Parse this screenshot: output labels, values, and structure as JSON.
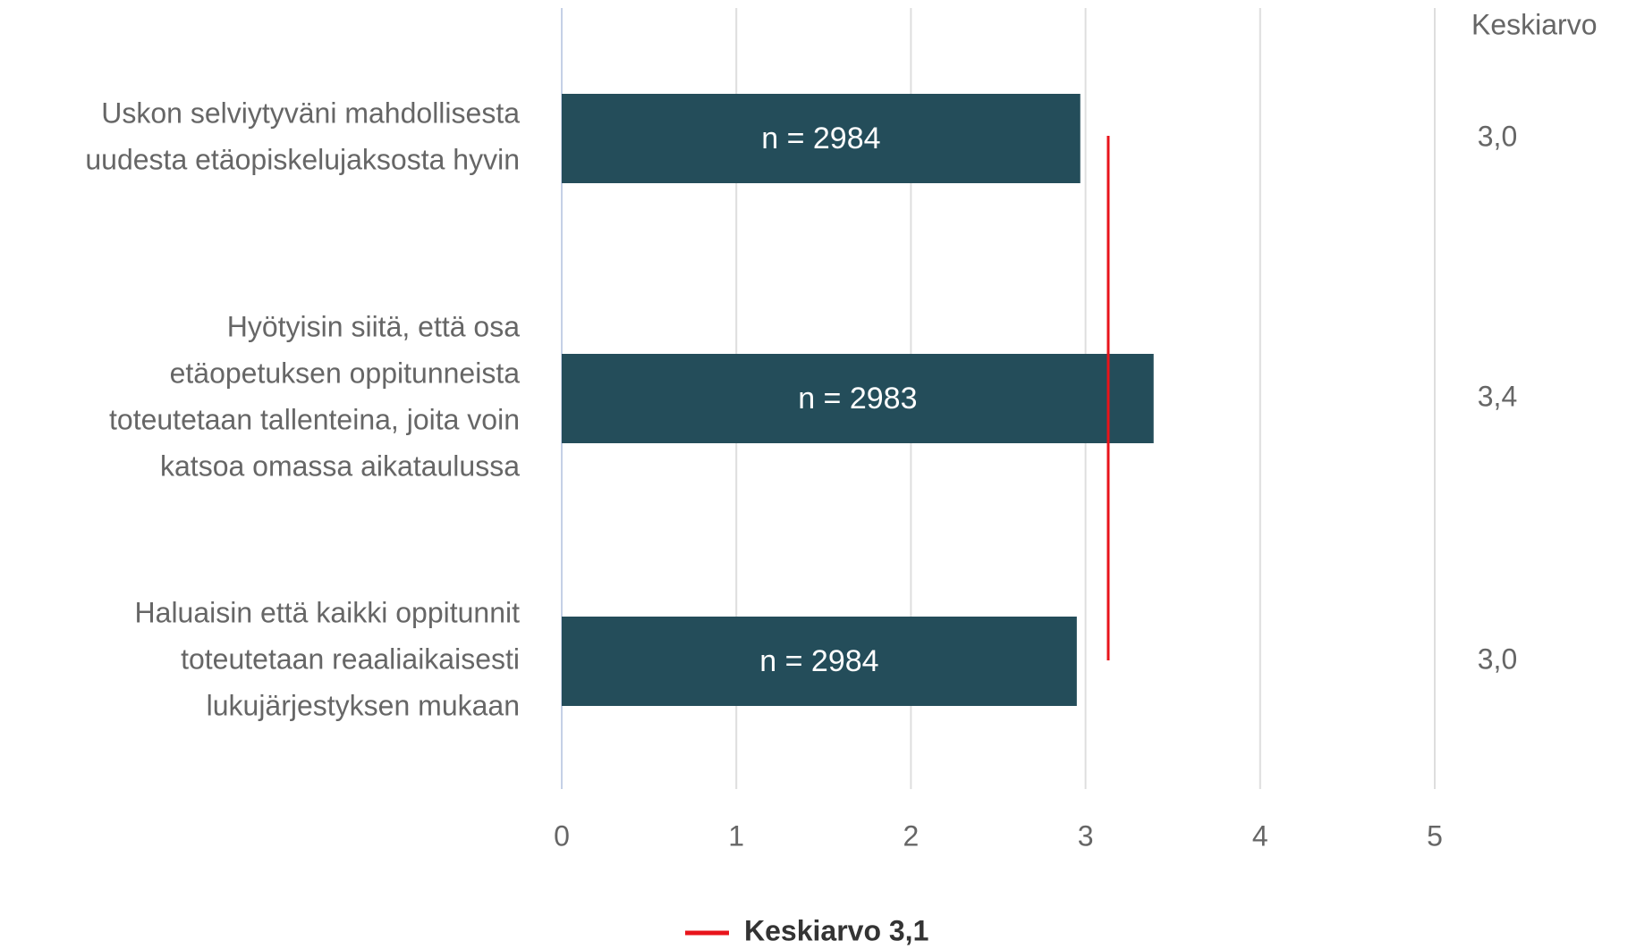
{
  "chart_data": {
    "type": "bar",
    "orientation": "horizontal",
    "categories": [
      [
        "Uskon selviytyväni mahdollisesta",
        "uudesta etäopiskelujaksosta hyvin"
      ],
      [
        "Hyötyisin siitä, että osa",
        "etäopetuksen oppitunneista",
        "toteutetaan tallenteina, joita voin",
        "katsoa omassa aikataulussa"
      ],
      [
        "Haluaisin että kaikki oppitunnit",
        "toteutetaan reaaliaikaisesti",
        "lukujärjestyksen mukaan"
      ]
    ],
    "values": [
      2.97,
      3.39,
      2.95
    ],
    "value_labels": [
      "3,0",
      "3,4",
      "3,0"
    ],
    "value_column_title": "Keskiarvo",
    "bar_labels": [
      "n = 2984",
      "n = 2983",
      "n = 2984"
    ],
    "color": "#244d5a",
    "reference_line": {
      "name": "Keskiarvo 3,1",
      "value": 3.13,
      "color": "#e8141b"
    },
    "xlim": [
      0,
      5
    ],
    "xticks": [
      0,
      1,
      2,
      3,
      4,
      5
    ],
    "grid": true,
    "legend": "bottom"
  }
}
